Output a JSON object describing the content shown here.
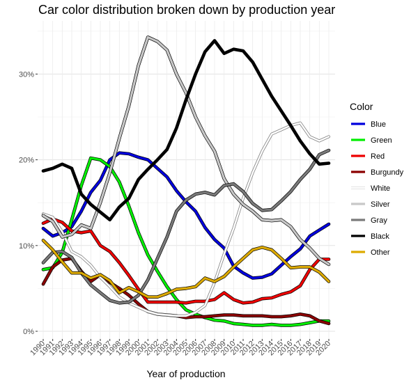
{
  "chart_data": {
    "type": "line",
    "title": "Car color distribution broken down by production year",
    "xlabel": "Year of production",
    "ylabel": "",
    "xlim": [
      1990,
      2020
    ],
    "ylim": [
      0,
      0.35
    ],
    "x": [
      1990,
      1991,
      1992,
      1993,
      1994,
      1995,
      1996,
      1997,
      1998,
      1999,
      2000,
      2001,
      2002,
      2003,
      2004,
      2005,
      2006,
      2007,
      2008,
      2009,
      2010,
      2011,
      2012,
      2013,
      2014,
      2015,
      2016,
      2017,
      2018,
      2019,
      2020
    ],
    "x_ticks": [
      "1990",
      "1991",
      "1992",
      "1993",
      "1994",
      "1995",
      "1996",
      "1997",
      "1998",
      "1999",
      "2000",
      "2001",
      "2002",
      "2003",
      "2004",
      "2005",
      "2006",
      "2007",
      "2008",
      "2009",
      "2010",
      "2011",
      "2012",
      "2013",
      "2014",
      "2015",
      "2016",
      "2017",
      "2018",
      "2019",
      "2020"
    ],
    "y_ticks": [
      {
        "value": 0,
        "label": "0%"
      },
      {
        "value": 0.1,
        "label": "10%"
      },
      {
        "value": 0.2,
        "label": "20%"
      },
      {
        "value": 0.3,
        "label": "30%"
      }
    ],
    "grid": true,
    "legend": {
      "title": "Color",
      "position": "right"
    },
    "series": [
      {
        "name": "Blue",
        "color": "#0000dd",
        "style": "solid",
        "values": [
          0.12,
          0.111,
          0.115,
          0.122,
          0.14,
          0.162,
          0.176,
          0.2,
          0.208,
          0.207,
          0.203,
          0.2,
          0.19,
          0.18,
          0.164,
          0.151,
          0.14,
          0.121,
          0.107,
          0.097,
          0.076,
          0.068,
          0.062,
          0.063,
          0.067,
          0.077,
          0.087,
          0.096,
          0.111,
          0.118,
          0.125
        ]
      },
      {
        "name": "Green",
        "color": "#00ee00",
        "style": "solid",
        "values": [
          0.072,
          0.074,
          0.092,
          0.13,
          0.17,
          0.202,
          0.2,
          0.192,
          0.174,
          0.146,
          0.115,
          0.089,
          0.07,
          0.052,
          0.037,
          0.025,
          0.02,
          0.016,
          0.013,
          0.012,
          0.009,
          0.008,
          0.007,
          0.007,
          0.008,
          0.007,
          0.007,
          0.008,
          0.01,
          0.012,
          0.012
        ]
      },
      {
        "name": "Red",
        "color": "#ee0000",
        "style": "solid",
        "values": [
          0.126,
          0.131,
          0.127,
          0.117,
          0.115,
          0.117,
          0.1,
          0.093,
          0.08,
          0.065,
          0.049,
          0.034,
          0.034,
          0.034,
          0.034,
          0.033,
          0.035,
          0.035,
          0.037,
          0.045,
          0.037,
          0.033,
          0.034,
          0.038,
          0.039,
          0.043,
          0.046,
          0.053,
          0.072,
          0.084,
          0.084
        ]
      },
      {
        "name": "Burgundy",
        "color": "#8b0000",
        "style": "solid",
        "values": [
          0.055,
          0.075,
          0.083,
          0.085,
          0.07,
          0.058,
          0.066,
          0.057,
          0.05,
          0.042,
          0.032,
          0.023,
          0.02,
          0.019,
          0.018,
          0.016,
          0.017,
          0.017,
          0.018,
          0.019,
          0.019,
          0.018,
          0.018,
          0.018,
          0.017,
          0.017,
          0.018,
          0.02,
          0.018,
          0.012,
          0.009
        ]
      },
      {
        "name": "White",
        "color": "#ffffff",
        "style": "outlined",
        "values": [
          0.137,
          0.133,
          0.116,
          0.093,
          0.087,
          0.077,
          0.063,
          0.052,
          0.04,
          0.033,
          0.028,
          0.023,
          0.02,
          0.019,
          0.018,
          0.018,
          0.022,
          0.03,
          0.057,
          0.09,
          0.12,
          0.155,
          0.185,
          0.21,
          0.23,
          0.235,
          0.24,
          0.243,
          0.227,
          0.222,
          0.227
        ]
      },
      {
        "name": "Silver",
        "color": "#c8c8c8",
        "style": "solid",
        "values": [
          0.135,
          0.128,
          0.11,
          0.113,
          0.124,
          0.12,
          0.15,
          0.185,
          0.225,
          0.263,
          0.31,
          0.343,
          0.338,
          0.328,
          0.3,
          0.278,
          0.25,
          0.228,
          0.21,
          0.178,
          0.16,
          0.148,
          0.14,
          0.13,
          0.129,
          0.13,
          0.122,
          0.107,
          0.097,
          0.085,
          0.078
        ]
      },
      {
        "name": "Gray",
        "color": "#7a7a7a",
        "style": "solid",
        "values": [
          0.08,
          0.092,
          0.093,
          0.086,
          0.068,
          0.054,
          0.045,
          0.036,
          0.033,
          0.034,
          0.042,
          0.06,
          0.085,
          0.11,
          0.14,
          0.153,
          0.16,
          0.162,
          0.159,
          0.17,
          0.172,
          0.163,
          0.149,
          0.141,
          0.142,
          0.152,
          0.163,
          0.177,
          0.189,
          0.206,
          0.211
        ]
      },
      {
        "name": "Black",
        "color": "#000000",
        "style": "solid",
        "values": [
          0.187,
          0.19,
          0.195,
          0.19,
          0.16,
          0.148,
          0.139,
          0.13,
          0.145,
          0.155,
          0.177,
          0.189,
          0.2,
          0.212,
          0.237,
          0.27,
          0.3,
          0.326,
          0.339,
          0.324,
          0.329,
          0.327,
          0.314,
          0.294,
          0.274,
          0.257,
          0.24,
          0.222,
          0.207,
          0.195,
          0.196
        ]
      },
      {
        "name": "Other",
        "color": "#ddaa00",
        "style": "solid",
        "values": [
          0.106,
          0.095,
          0.081,
          0.068,
          0.068,
          0.062,
          0.066,
          0.059,
          0.045,
          0.051,
          0.046,
          0.04,
          0.04,
          0.044,
          0.049,
          0.05,
          0.052,
          0.062,
          0.058,
          0.064,
          0.075,
          0.085,
          0.095,
          0.098,
          0.095,
          0.085,
          0.074,
          0.075,
          0.075,
          0.069,
          0.058
        ]
      }
    ]
  }
}
